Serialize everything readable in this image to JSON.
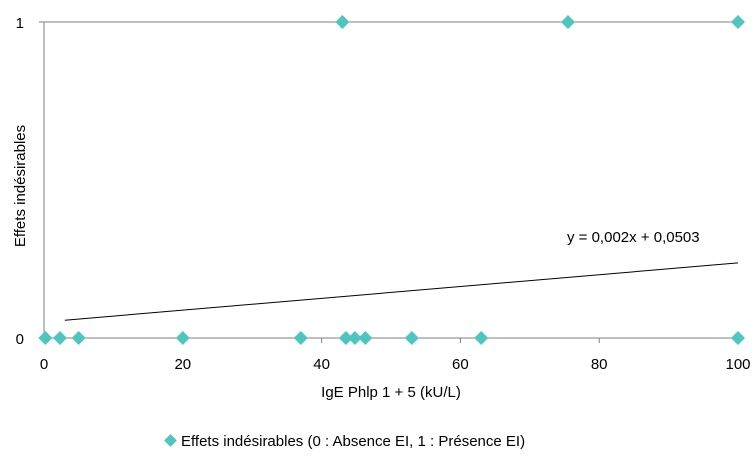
{
  "chart_data": {
    "type": "scatter",
    "title": "",
    "xlabel": "IgE Phlp 1 + 5  (kU/L)",
    "ylabel": "Effets indésirables",
    "xlim": [
      0,
      100
    ],
    "ylim": [
      0,
      1
    ],
    "x_ticks": [
      "0",
      "20",
      "40",
      "60",
      "80",
      "100"
    ],
    "y_ticks": [
      "0",
      "1"
    ],
    "grid": false,
    "legend_position": "bottom",
    "series": [
      {
        "name": "Effets indésirables (0 : Absence EI, 1 : Présence EI)",
        "color": "#4fc5c0",
        "marker": "diamond",
        "points": [
          {
            "x": 0.2,
            "y": 0
          },
          {
            "x": 2.3,
            "y": 0
          },
          {
            "x": 5,
            "y": 0
          },
          {
            "x": 20,
            "y": 0
          },
          {
            "x": 37,
            "y": 0
          },
          {
            "x": 43.5,
            "y": 0
          },
          {
            "x": 44.8,
            "y": 0
          },
          {
            "x": 46.3,
            "y": 0
          },
          {
            "x": 53,
            "y": 0
          },
          {
            "x": 63,
            "y": 0
          },
          {
            "x": 100,
            "y": 0
          },
          {
            "x": 43,
            "y": 1
          },
          {
            "x": 75.5,
            "y": 1
          },
          {
            "x": 100,
            "y": 1
          }
        ]
      }
    ],
    "trendline": {
      "equation": "y = 0,002x + 0,0503",
      "slope": 0.002,
      "intercept": 0.0503,
      "color": "#000000"
    }
  }
}
